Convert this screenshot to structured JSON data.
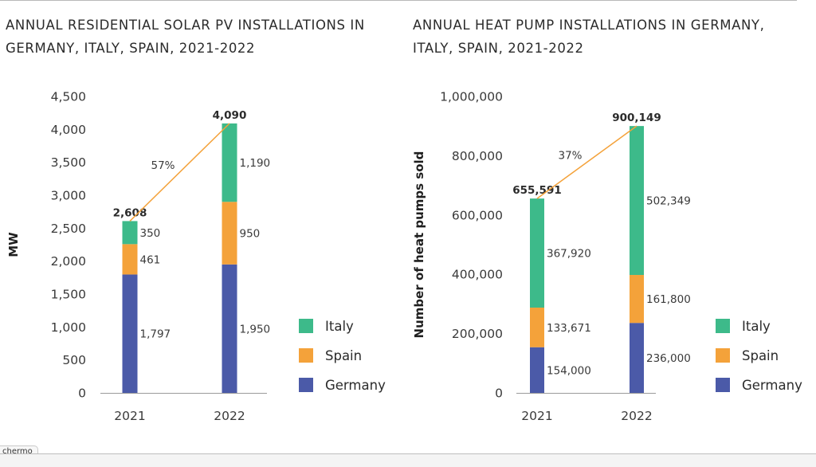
{
  "titles": {
    "left": "ANNUAL RESIDENTIAL SOLAR PV INSTALLATIONS IN GERMANY, ITALY, SPAIN, 2021-2022",
    "right": "ANNUAL HEAT PUMP INSTALLATIONS IN GERMANY, ITALY, SPAIN, 2021-2022"
  },
  "legend": [
    {
      "name": "Italy",
      "color": "#3dba8a"
    },
    {
      "name": "Spain",
      "color": "#f4a23a"
    },
    {
      "name": "Germany",
      "color": "#4b5aa8"
    }
  ],
  "colors": {
    "growth_line": "#f4a23a",
    "axis": "#9a9a9a"
  },
  "footer": {
    "tab_label": "chermo"
  },
  "chart_data": [
    {
      "type": "bar",
      "stacked": true,
      "title": "ANNUAL RESIDENTIAL SOLAR PV INSTALLATIONS IN GERMANY, ITALY, SPAIN, 2021-2022",
      "categories": [
        "2021",
        "2022"
      ],
      "series": [
        {
          "name": "Germany",
          "values": [
            1797,
            1950
          ],
          "labels": [
            "1,797",
            "1,950"
          ]
        },
        {
          "name": "Spain",
          "values": [
            461,
            950
          ],
          "labels": [
            "461",
            "950"
          ]
        },
        {
          "name": "Italy",
          "values": [
            350,
            1190
          ],
          "labels": [
            "350",
            "1,190"
          ]
        }
      ],
      "totals": [
        2608,
        4090
      ],
      "total_labels": [
        "2,608",
        "4,090"
      ],
      "growth_label": "57%",
      "ylabel": "MW",
      "ylim": [
        0,
        4500
      ],
      "yticks": [
        0,
        500,
        1000,
        1500,
        2000,
        2500,
        3000,
        3500,
        4000,
        4500
      ],
      "ytick_labels": [
        "0",
        "500",
        "1,000",
        "1,500",
        "2,000",
        "2,500",
        "3,000",
        "3,500",
        "4,000",
        "4,500"
      ],
      "grid": false,
      "legend_position": "right"
    },
    {
      "type": "bar",
      "stacked": true,
      "title": "ANNUAL HEAT PUMP INSTALLATIONS IN GERMANY, ITALY, SPAIN, 2021-2022",
      "categories": [
        "2021",
        "2022"
      ],
      "series": [
        {
          "name": "Germany",
          "values": [
            154000,
            236000
          ],
          "labels": [
            "154,000",
            "236,000"
          ]
        },
        {
          "name": "Spain",
          "values": [
            133671,
            161800
          ],
          "labels": [
            "133,671",
            "161,800"
          ]
        },
        {
          "name": "Italy",
          "values": [
            367920,
            502349
          ],
          "labels": [
            "367,920",
            "502,349"
          ]
        }
      ],
      "totals": [
        655591,
        900149
      ],
      "total_labels": [
        "655,591",
        "900,149"
      ],
      "growth_label": "37%",
      "ylabel": "Number of heat pumps sold",
      "ylim": [
        0,
        1000000
      ],
      "yticks": [
        0,
        200000,
        400000,
        600000,
        800000,
        1000000
      ],
      "ytick_labels": [
        "0",
        "200,000",
        "400,000",
        "600,000",
        "800,000",
        "1,000,000"
      ],
      "grid": false,
      "legend_position": "right"
    }
  ]
}
